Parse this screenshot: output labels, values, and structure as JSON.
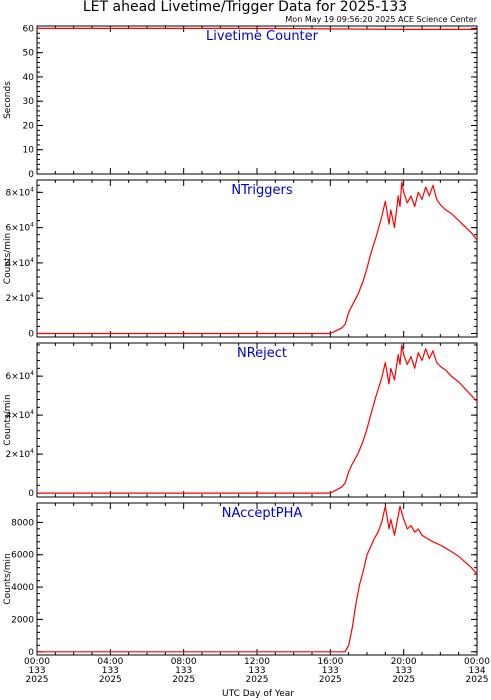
{
  "title": "LET ahead Livetime/Trigger Data for 2025-133",
  "timestamp": "Mon May 19 09:56:20 2025 ACE Science Center",
  "xlabel": "UTC Day of Year",
  "colors": {
    "series": "#ff0000",
    "panel_title": "#0000cc",
    "axes": "#000000"
  },
  "x_ticks": [
    {
      "time": "00:00",
      "doy": "133",
      "year": "2025"
    },
    {
      "time": "04:00",
      "doy": "133",
      "year": "2025"
    },
    {
      "time": "08:00",
      "doy": "133",
      "year": "2025"
    },
    {
      "time": "12:00",
      "doy": "133",
      "year": "2025"
    },
    {
      "time": "16:00",
      "doy": "133",
      "year": "2025"
    },
    {
      "time": "20:00",
      "doy": "133",
      "year": "2025"
    },
    {
      "time": "00:00",
      "doy": "134",
      "year": "2025"
    }
  ],
  "chart_data": [
    {
      "type": "line",
      "title": "Livetime Counter",
      "ylabel": "Seconds",
      "xlim": [
        0,
        24
      ],
      "ylim": [
        0,
        61
      ],
      "yticks": [
        {
          "v": 0,
          "base": "0",
          "exp": ""
        },
        {
          "v": 10,
          "base": "10",
          "exp": ""
        },
        {
          "v": 20,
          "base": "20",
          "exp": ""
        },
        {
          "v": 30,
          "base": "30",
          "exp": ""
        },
        {
          "v": 40,
          "base": "40",
          "exp": ""
        },
        {
          "v": 50,
          "base": "50",
          "exp": ""
        },
        {
          "v": 60,
          "base": "60",
          "exp": ""
        }
      ],
      "x": [
        0,
        4,
        8,
        12,
        16,
        20,
        24
      ],
      "y": [
        60,
        60,
        60,
        60,
        59.8,
        59.6,
        59.6
      ]
    },
    {
      "type": "line",
      "title": "NTriggers",
      "ylabel": "Counts/min",
      "xlim": [
        0,
        24
      ],
      "ylim": [
        -2000,
        87000
      ],
      "yticks": [
        {
          "v": 0,
          "base": "0",
          "exp": ""
        },
        {
          "v": 20000,
          "base": "2×10",
          "exp": "4"
        },
        {
          "v": 40000,
          "base": "4×10",
          "exp": "4"
        },
        {
          "v": 60000,
          "base": "6×10",
          "exp": "4"
        },
        {
          "v": 80000,
          "base": "8×10",
          "exp": "4"
        }
      ],
      "x": [
        0,
        15.5,
        16.0,
        16.4,
        16.6,
        16.8,
        17.0,
        17.2,
        17.5,
        17.8,
        18.0,
        18.2,
        18.5,
        18.8,
        19.0,
        19.2,
        19.3,
        19.5,
        19.7,
        19.8,
        19.9,
        20.0,
        20.2,
        20.4,
        20.6,
        20.8,
        21.0,
        21.2,
        21.4,
        21.6,
        21.8,
        22.0,
        22.3,
        22.6,
        23.0,
        23.4,
        23.7,
        24.0
      ],
      "y": [
        0,
        0,
        0,
        2000,
        3000,
        5000,
        12000,
        16000,
        22000,
        30000,
        37000,
        45000,
        55000,
        66000,
        75000,
        62000,
        70000,
        60000,
        78000,
        72000,
        86000,
        80000,
        74000,
        78000,
        72000,
        80000,
        76000,
        83000,
        78000,
        84000,
        76000,
        73000,
        70000,
        68000,
        64000,
        60000,
        57000,
        53000
      ]
    },
    {
      "type": "line",
      "title": "NReject",
      "ylabel": "Counts/min",
      "xlim": [
        0,
        24
      ],
      "ylim": [
        -2000,
        77000
      ],
      "yticks": [
        {
          "v": 0,
          "base": "0",
          "exp": ""
        },
        {
          "v": 20000,
          "base": "2×10",
          "exp": "4"
        },
        {
          "v": 40000,
          "base": "4×10",
          "exp": "4"
        },
        {
          "v": 60000,
          "base": "6×10",
          "exp": "4"
        }
      ],
      "x": [
        0,
        15.5,
        16.0,
        16.4,
        16.6,
        16.8,
        17.0,
        17.2,
        17.5,
        17.8,
        18.0,
        18.2,
        18.5,
        18.8,
        19.0,
        19.2,
        19.3,
        19.5,
        19.7,
        19.8,
        19.9,
        20.0,
        20.2,
        20.4,
        20.6,
        20.8,
        21.0,
        21.2,
        21.4,
        21.6,
        21.8,
        22.0,
        22.3,
        22.6,
        23.0,
        23.4,
        23.7,
        24.0
      ],
      "y": [
        0,
        0,
        0,
        2000,
        3000,
        5000,
        11000,
        15000,
        20000,
        27000,
        33000,
        40000,
        50000,
        59000,
        67000,
        56000,
        64000,
        58000,
        71000,
        66000,
        76000,
        71000,
        66000,
        70000,
        64000,
        72000,
        68000,
        74000,
        69000,
        73000,
        67000,
        65000,
        63000,
        60000,
        57000,
        53000,
        50000,
        47000
      ]
    },
    {
      "type": "line",
      "title": "NAcceptPHA",
      "ylabel": "Counts/min",
      "xlim": [
        0,
        24
      ],
      "ylim": [
        -200,
        9200
      ],
      "yticks": [
        {
          "v": 0,
          "base": "0",
          "exp": ""
        },
        {
          "v": 2000,
          "base": "2000",
          "exp": ""
        },
        {
          "v": 4000,
          "base": "4000",
          "exp": ""
        },
        {
          "v": 6000,
          "base": "6000",
          "exp": ""
        },
        {
          "v": 8000,
          "base": "8000",
          "exp": ""
        }
      ],
      "x": [
        0,
        16.5,
        16.8,
        17.0,
        17.2,
        17.4,
        17.6,
        17.8,
        18.0,
        18.2,
        18.4,
        18.6,
        18.8,
        19.0,
        19.2,
        19.3,
        19.5,
        19.7,
        19.8,
        19.9,
        20.0,
        20.2,
        20.4,
        20.6,
        20.8,
        21.0,
        21.3,
        21.6,
        22.0,
        22.3,
        22.6,
        23.0,
        23.4,
        23.7,
        24.0
      ],
      "y": [
        0,
        0,
        0,
        400,
        1500,
        3000,
        4200,
        5000,
        6000,
        6500,
        7000,
        7400,
        8000,
        9000,
        7600,
        8200,
        7200,
        8400,
        9000,
        8600,
        8200,
        7600,
        7800,
        7400,
        7600,
        7200,
        7000,
        6800,
        6600,
        6400,
        6200,
        5900,
        5500,
        5200,
        4800
      ]
    }
  ]
}
